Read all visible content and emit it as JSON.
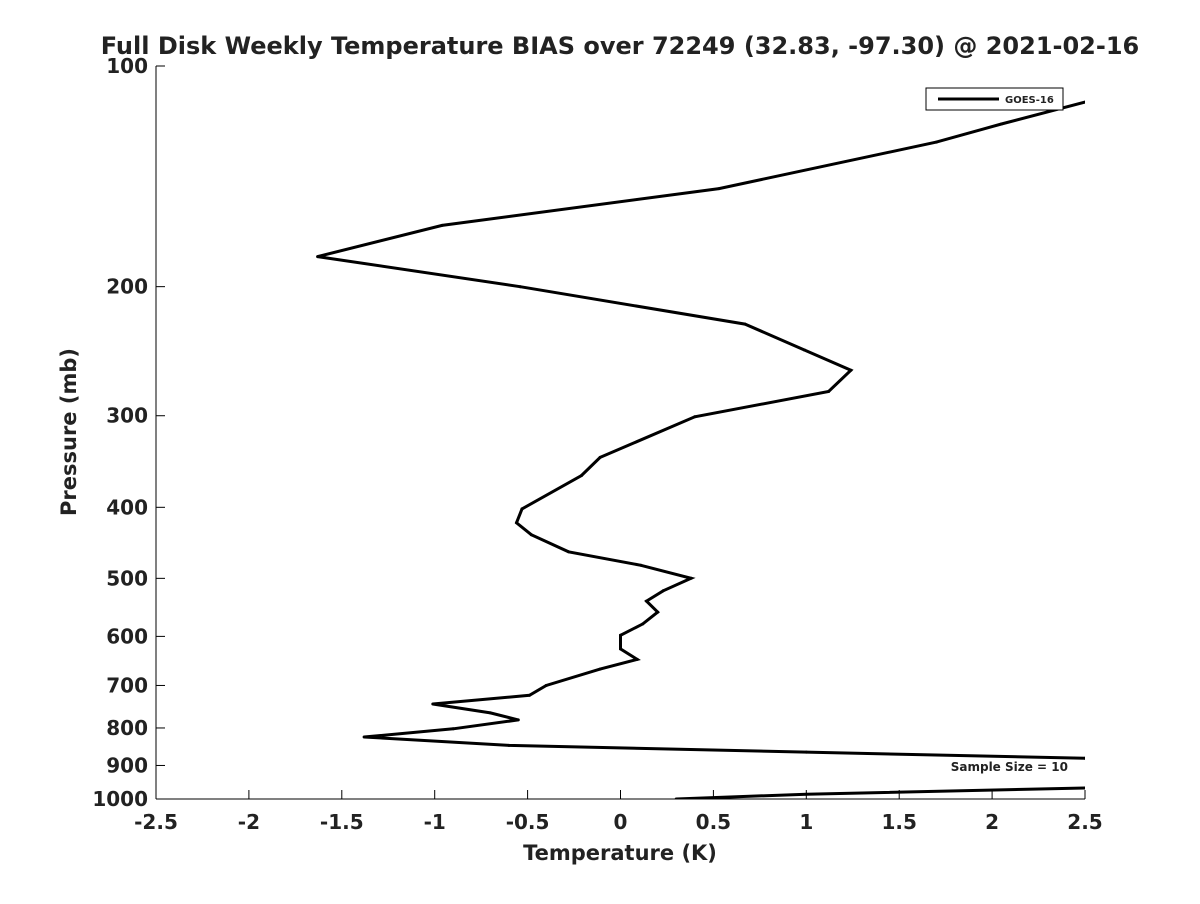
{
  "chart_data": {
    "type": "line",
    "title": "Full Disk Weekly Temperature BIAS over 72249 (32.83, -97.30) @ 2021-02-16",
    "xlabel": "Temperature (K)",
    "ylabel": "Pressure (mb)",
    "xlim": [
      -2.5,
      2.5
    ],
    "ylim": [
      1000,
      100
    ],
    "y_scale": "log",
    "grid": false,
    "legend_position": "top-right",
    "x_ticks": [
      -2.5,
      -2,
      -1.5,
      -1,
      -0.5,
      0,
      0.5,
      1,
      1.5,
      2,
      2.5
    ],
    "x_tick_labels": [
      "-2.5",
      "-2",
      "-1.5",
      "-1",
      "-0.5",
      "0",
      "0.5",
      "1",
      "1.5",
      "2",
      "2.5"
    ],
    "y_ticks": [
      100,
      200,
      300,
      400,
      500,
      600,
      700,
      800,
      900,
      1000
    ],
    "y_tick_labels": [
      "100",
      "200",
      "300",
      "400",
      "500",
      "600",
      "700",
      "800",
      "900",
      "1000"
    ],
    "series": [
      {
        "name": "GOES-16",
        "color": "#000000",
        "points": [
          {
            "x": 2.5,
            "y": 112
          },
          {
            "x": 2.05,
            "y": 120
          },
          {
            "x": 1.7,
            "y": 127
          },
          {
            "x": 0.53,
            "y": 147
          },
          {
            "x": -0.96,
            "y": 165
          },
          {
            "x": -1.63,
            "y": 182
          },
          {
            "x": -0.54,
            "y": 200
          },
          {
            "x": 0.67,
            "y": 225
          },
          {
            "x": 0.99,
            "y": 244
          },
          {
            "x": 1.24,
            "y": 260
          },
          {
            "x": 1.12,
            "y": 278
          },
          {
            "x": 0.4,
            "y": 301
          },
          {
            "x": -0.11,
            "y": 342
          },
          {
            "x": -0.21,
            "y": 362
          },
          {
            "x": -0.53,
            "y": 402
          },
          {
            "x": -0.56,
            "y": 420
          },
          {
            "x": -0.48,
            "y": 436
          },
          {
            "x": -0.28,
            "y": 460
          },
          {
            "x": 0.11,
            "y": 480
          },
          {
            "x": 0.38,
            "y": 500
          },
          {
            "x": 0.23,
            "y": 520
          },
          {
            "x": 0.14,
            "y": 537
          },
          {
            "x": 0.2,
            "y": 556
          },
          {
            "x": 0.12,
            "y": 577
          },
          {
            "x": 0.0,
            "y": 598
          },
          {
            "x": 0.0,
            "y": 624
          },
          {
            "x": 0.09,
            "y": 645
          },
          {
            "x": -0.11,
            "y": 665
          },
          {
            "x": -0.4,
            "y": 700
          },
          {
            "x": -0.49,
            "y": 722
          },
          {
            "x": -1.01,
            "y": 742
          },
          {
            "x": -0.7,
            "y": 763
          },
          {
            "x": -0.55,
            "y": 780
          },
          {
            "x": -0.9,
            "y": 802
          },
          {
            "x": -1.38,
            "y": 823
          },
          {
            "x": -0.6,
            "y": 845
          },
          {
            "x": 1.0,
            "y": 863
          },
          {
            "x": 2.5,
            "y": 880
          }
        ]
      },
      {
        "name": "",
        "color": "#000000",
        "points": [
          {
            "x": 2.5,
            "y": 966
          },
          {
            "x": 1.0,
            "y": 985
          },
          {
            "x": 0.3,
            "y": 1000
          }
        ]
      }
    ],
    "annotations": [
      {
        "text": "Sample Size = 10"
      }
    ]
  }
}
